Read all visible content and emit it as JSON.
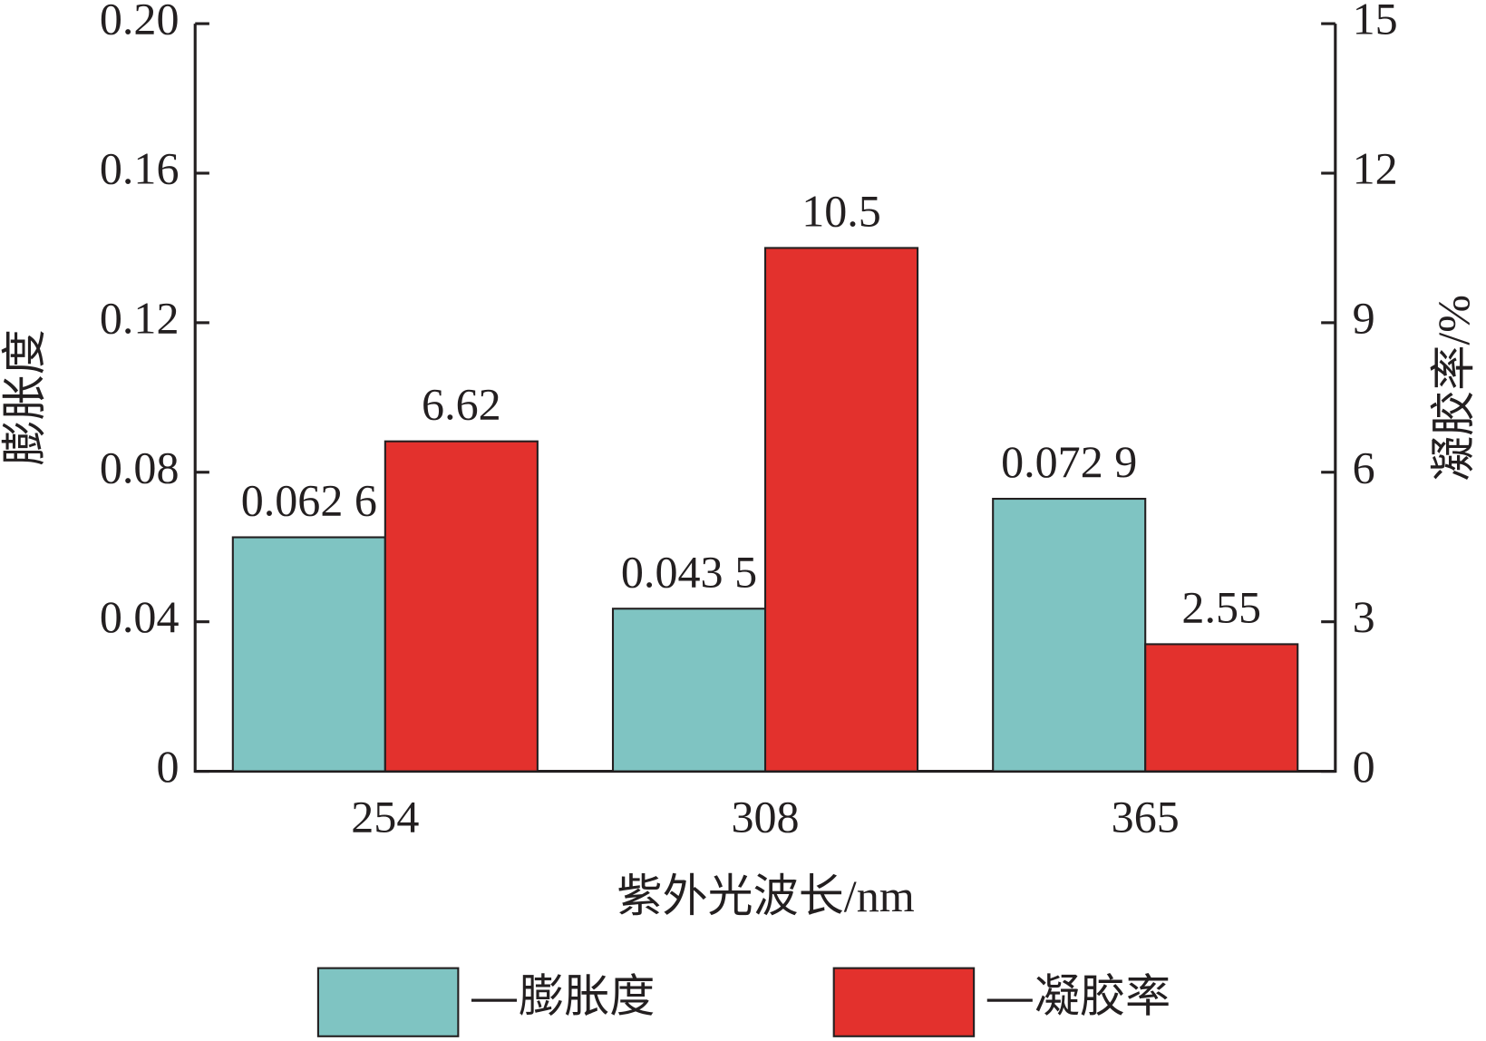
{
  "chart_data": {
    "type": "bar",
    "xlabel": "紫外光波长/nm",
    "ylabel": "膨胀度",
    "y2label": "凝胶率/%",
    "categories": [
      "254",
      "308",
      "365"
    ],
    "series": [
      {
        "name": "膨胀度",
        "color": "#7fc4c2",
        "values": [
          0.0626,
          0.0435,
          0.0729
        ],
        "value_labels": [
          "0.062 6",
          "0.043 5",
          "0.072 9"
        ]
      },
      {
        "name": "凝胶率",
        "color": "#e3312d",
        "values": [
          6.62,
          10.5,
          2.55
        ],
        "axis": "y2"
      }
    ],
    "ylim": [
      0,
      0.2
    ],
    "yticks": [
      0,
      0.04,
      0.08,
      0.12,
      0.16,
      {
        "value": 0.2,
        "label": "0.20"
      }
    ],
    "y2lim": [
      0,
      15
    ],
    "y2ticks": [
      0,
      3,
      6,
      9,
      12,
      15
    ],
    "grid": false
  }
}
